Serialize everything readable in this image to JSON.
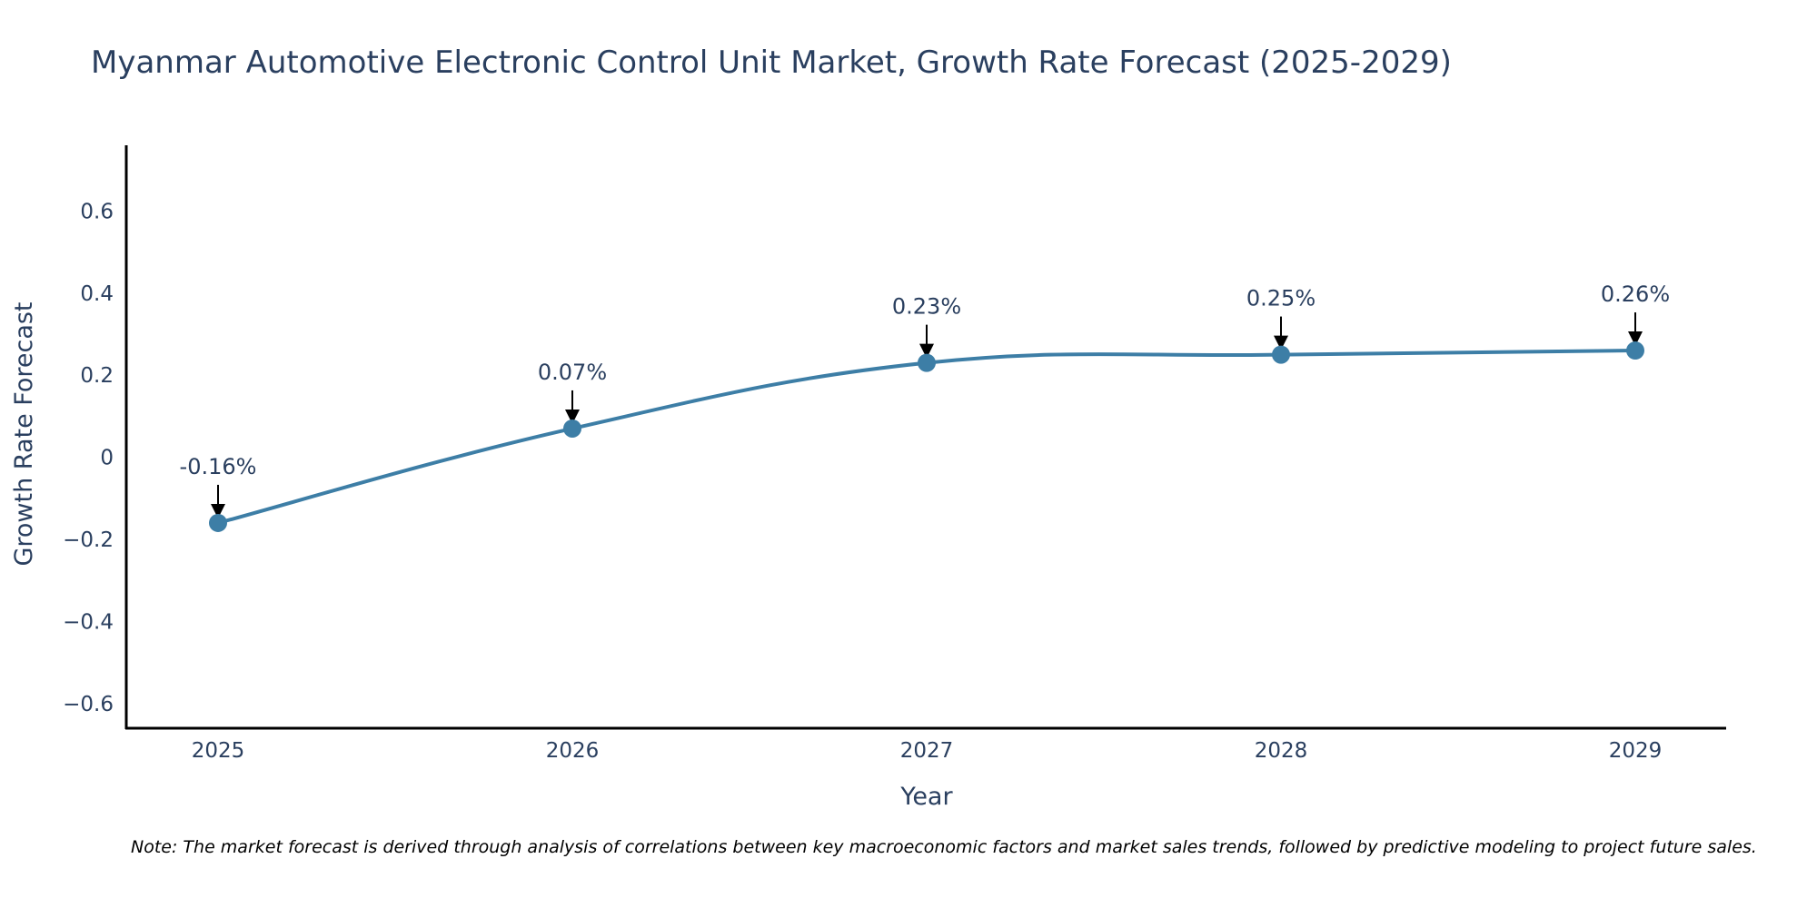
{
  "chart_data": {
    "type": "line",
    "title": "Myanmar Automotive Electronic Control Unit Market, Growth Rate Forecast (2025-2029)",
    "xlabel": "Year",
    "ylabel": "Growth Rate Forecast",
    "categories": [
      "2025",
      "2026",
      "2027",
      "2028",
      "2029"
    ],
    "series": [
      {
        "name": "Growth Rate Forecast",
        "values": [
          -0.16,
          0.07,
          0.23,
          0.25,
          0.26
        ],
        "labels": [
          "-0.16%",
          "0.07%",
          "0.23%",
          "0.25%",
          "0.26%"
        ],
        "color": "#3d7ea6"
      }
    ],
    "ylim": [
      -0.66,
      0.76
    ],
    "yticks": [
      -0.6,
      -0.4,
      -0.2,
      0,
      0.2,
      0.4,
      0.6
    ],
    "ytick_labels": [
      "−0.6",
      "−0.4",
      "−0.2",
      "0",
      "0.2",
      "0.4",
      "0.6"
    ],
    "grid": false,
    "axis_color": "#000000",
    "text_color": "#2a3f5f",
    "note": "Note: The market forecast is derived through analysis of correlations between key macroeconomic factors and market sales trends, followed by predictive modeling to project future sales."
  }
}
